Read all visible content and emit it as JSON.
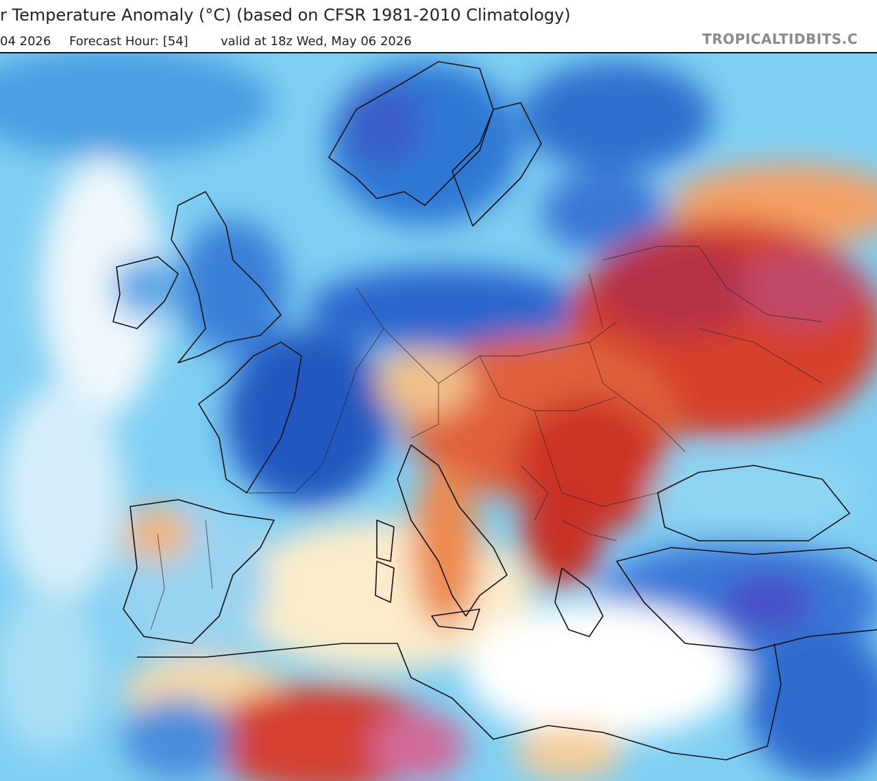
{
  "header": {
    "title": "r Temperature Anomaly (°C) (based on CFSR 1981-2010 Climatology)",
    "date": "04 2026",
    "forecast_hour": "Forecast Hour: [54]",
    "valid": "valid at 18z Wed, May 06 2026",
    "watermark": "TROPICALTIDBITS.C"
  }
}
